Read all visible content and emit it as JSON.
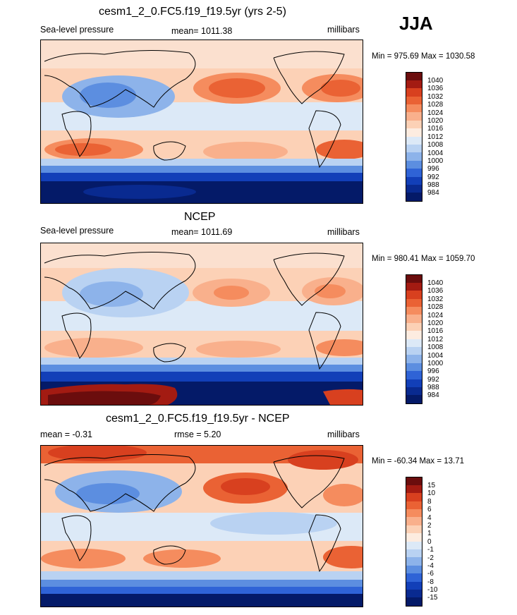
{
  "season": "JJA",
  "panels": [
    {
      "title": "cesm1_2_0.FC5.f19_f19.5yr (yrs 2-5)",
      "left": "Sea-level pressure",
      "center": "mean= 1011.38",
      "right": "millibars",
      "minmax": "Min = 975.69 Max = 1030.58"
    },
    {
      "title": "NCEP",
      "left": "Sea-level pressure",
      "center": "mean= 1011.69",
      "right": "millibars",
      "minmax": "Min = 980.41 Max = 1059.70"
    },
    {
      "title": "cesm1_2_0.FC5.f19_f19.5yr - NCEP",
      "left": "mean =  -0.31",
      "center": "rmse =   5.20",
      "right": "millibars",
      "minmax": "Min = -60.34 Max =  13.71"
    }
  ],
  "scales": {
    "slp": {
      "levels": [
        "1040",
        "1036",
        "1032",
        "1028",
        "1024",
        "1020",
        "1016",
        "1012",
        "1008",
        "1004",
        "1000",
        "996",
        "992",
        "988",
        "984"
      ],
      "colors": [
        "#6b0d0d",
        "#a31b12",
        "#d8401f",
        "#ea6234",
        "#f58c5e",
        "#f9b08c",
        "#fcd1b6",
        "#fdece0",
        "#dce9f7",
        "#b9d2f2",
        "#8db3ea",
        "#5c8ee0",
        "#2f63d6",
        "#123fb8",
        "#092a90",
        "#041a68"
      ]
    },
    "diff": {
      "levels": [
        "15",
        "10",
        "8",
        "6",
        "4",
        "2",
        "1",
        "0",
        "-1",
        "-2",
        "-4",
        "-6",
        "-8",
        "-10",
        "-15"
      ],
      "colors": [
        "#6b0d0d",
        "#a31b12",
        "#d8401f",
        "#ea6234",
        "#f58c5e",
        "#f9b08c",
        "#fcd1b6",
        "#fdece0",
        "#dce9f7",
        "#b9d2f2",
        "#8db3ea",
        "#5c8ee0",
        "#2f63d6",
        "#123fb8",
        "#092a90",
        "#041a68"
      ]
    }
  },
  "chart_data": [
    {
      "type": "heatmap",
      "title": "cesm1_2_0.FC5.f19_f19.5yr (yrs 2-5)",
      "variable": "Sea-level pressure",
      "units": "millibars",
      "mean": 1011.38,
      "min": 975.69,
      "max": 1030.58,
      "contour_levels": [
        984,
        988,
        992,
        996,
        1000,
        1004,
        1008,
        1012,
        1016,
        1020,
        1024,
        1028,
        1032,
        1036,
        1040
      ],
      "projection": "global cylindrical equidistant, Pacific-centered"
    },
    {
      "type": "heatmap",
      "title": "NCEP",
      "variable": "Sea-level pressure",
      "units": "millibars",
      "mean": 1011.69,
      "min": 980.41,
      "max": 1059.7,
      "contour_levels": [
        984,
        988,
        992,
        996,
        1000,
        1004,
        1008,
        1012,
        1016,
        1020,
        1024,
        1028,
        1032,
        1036,
        1040
      ],
      "projection": "global cylindrical equidistant, Pacific-centered"
    },
    {
      "type": "heatmap",
      "title": "cesm1_2_0.FC5.f19_f19.5yr - NCEP",
      "units": "millibars",
      "mean": -0.31,
      "rmse": 5.2,
      "min": -60.34,
      "max": 13.71,
      "contour_levels": [
        -15,
        -10,
        -8,
        -6,
        -4,
        -2,
        -1,
        0,
        1,
        2,
        4,
        6,
        8,
        10,
        15
      ],
      "projection": "global cylindrical equidistant, Pacific-centered"
    }
  ]
}
